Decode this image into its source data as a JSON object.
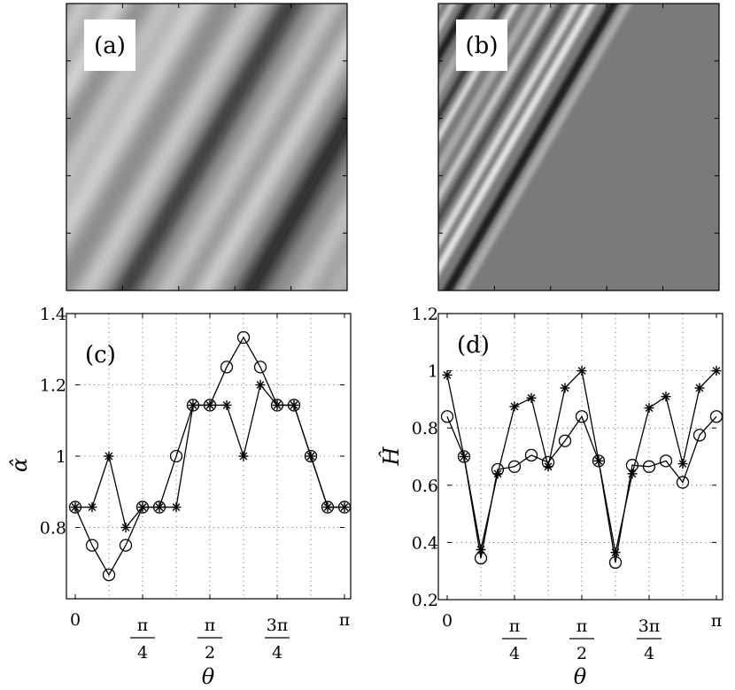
{
  "images": [
    {
      "label": "(a)",
      "pattern": "smooth-diagonal-stripes"
    },
    {
      "label": "(b)",
      "pattern": "streaky-diagonal-texture"
    }
  ],
  "chart_data": [
    {
      "type": "line",
      "label": "(c)",
      "ylabel": "α̂",
      "xlabel": "θ",
      "xlim": [
        0,
        3.14159
      ],
      "ylim": [
        0.6,
        1.4
      ],
      "yticks": [
        0.8,
        1,
        1.2,
        1.4
      ],
      "ytick_labels": [
        "0.8",
        "1",
        "1.2",
        "1.4"
      ],
      "xticks": [
        {
          "num": "0",
          "den": ""
        },
        {
          "num": "π",
          "den": "4"
        },
        {
          "num": "π",
          "den": "2"
        },
        {
          "num": "3π",
          "den": "4"
        },
        {
          "num": "π",
          "den": ""
        }
      ],
      "x": [
        0,
        0.1963,
        0.3927,
        0.589,
        0.7854,
        0.9817,
        1.1781,
        1.3744,
        1.5708,
        1.7671,
        1.9635,
        2.1598,
        2.3562,
        2.5525,
        2.7489,
        2.9452,
        3.1416
      ],
      "series": [
        {
          "name": "circles",
          "marker": "circle",
          "values": [
            0.857,
            0.75,
            0.667,
            0.75,
            0.857,
            0.857,
            1.0,
            1.143,
            1.143,
            1.25,
            1.333,
            1.25,
            1.143,
            1.143,
            1.0,
            0.857,
            0.857
          ]
        },
        {
          "name": "stars",
          "marker": "star",
          "values": [
            0.857,
            0.857,
            1.0,
            0.8,
            0.857,
            0.857,
            0.857,
            1.143,
            1.143,
            1.143,
            1.0,
            1.2,
            1.143,
            1.143,
            1.0,
            0.857,
            0.857
          ]
        }
      ]
    },
    {
      "type": "line",
      "label": "(d)",
      "ylabel": "Ĥ",
      "xlabel": "θ",
      "xlim": [
        0,
        3.14159
      ],
      "ylim": [
        0.2,
        1.2
      ],
      "yticks": [
        0.2,
        0.4,
        0.6,
        0.8,
        1,
        1.2
      ],
      "ytick_labels": [
        "0.2",
        "0.4",
        "0.6",
        "0.8",
        "1",
        "1.2"
      ],
      "xticks": [
        {
          "num": "0",
          "den": ""
        },
        {
          "num": "π",
          "den": "4"
        },
        {
          "num": "π",
          "den": "2"
        },
        {
          "num": "3π",
          "den": "4"
        },
        {
          "num": "π",
          "den": ""
        }
      ],
      "x": [
        0,
        0.1963,
        0.3927,
        0.589,
        0.7854,
        0.9817,
        1.1781,
        1.3744,
        1.5708,
        1.7671,
        1.9635,
        2.1598,
        2.3562,
        2.5525,
        2.7489,
        2.9452,
        3.1416
      ],
      "series": [
        {
          "name": "circles",
          "marker": "circle",
          "values": [
            0.84,
            0.7,
            0.345,
            0.655,
            0.665,
            0.705,
            0.68,
            0.755,
            0.84,
            0.685,
            0.33,
            0.67,
            0.665,
            0.685,
            0.61,
            0.775,
            0.84
          ]
        },
        {
          "name": "stars",
          "marker": "star",
          "values": [
            0.985,
            0.7,
            0.375,
            0.64,
            0.875,
            0.905,
            0.665,
            0.94,
            1.0,
            0.685,
            0.365,
            0.64,
            0.87,
            0.91,
            0.675,
            0.94,
            1.0
          ]
        }
      ]
    }
  ]
}
